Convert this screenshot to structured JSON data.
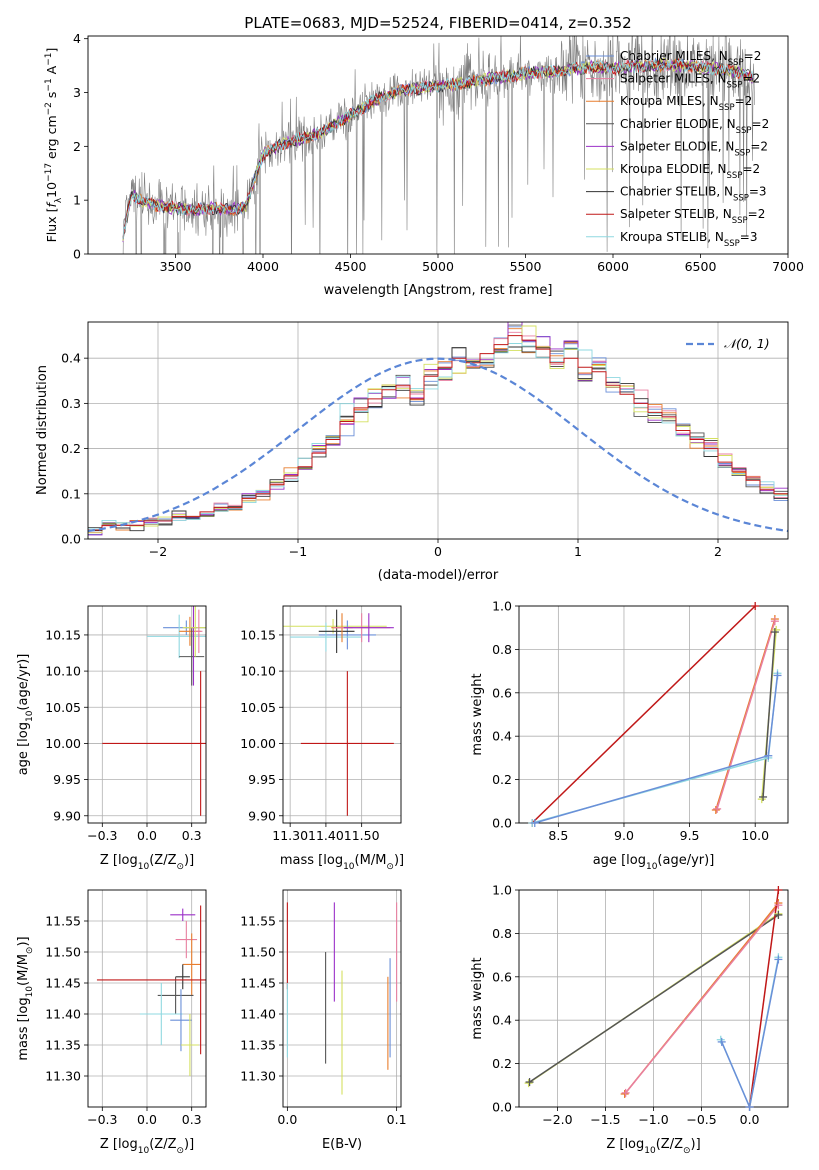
{
  "figure_title": "PLATE=0683, MJD=52524, FIBERID=0414, z=0.352",
  "colors": {
    "chabrier_miles": "#6a8fd8",
    "salpeter_miles": "#e87fa0",
    "kroupa_miles": "#e87e2e",
    "chabrier_elodie": "#555555",
    "salpeter_elodie": "#9b30c8",
    "kroupa_elodie": "#d4e060",
    "chabrier_stelib": "#333333",
    "salpeter_stelib": "#c01818",
    "kroupa_stelib": "#8fd8e0",
    "gauss": "#5b86d6",
    "data": "#808080",
    "grid": "#b0b0b0"
  },
  "chart_data": [
    {
      "id": "spectrum",
      "type": "line",
      "xlabel": "wavelength [Angstrom, rest frame]",
      "ylabel": "Flux [f_λ 10^-17 erg cm^-2 s^-1 A^-1]",
      "xlim": [
        3000,
        7000
      ],
      "ylim": [
        0,
        4.05
      ],
      "xticks": [
        3500,
        4000,
        4500,
        5000,
        5500,
        6000,
        6500,
        7000
      ],
      "yticks": [
        0,
        1,
        2,
        3,
        4
      ],
      "grid": false,
      "legend_position": "top-right",
      "legend": [
        {
          "main": "Chabrier MILES, N",
          "sub": "SSP",
          "tail": "=2",
          "color_key": "chabrier_miles"
        },
        {
          "main": "Salpeter MILES, N",
          "sub": "SSP",
          "tail": "=2",
          "color_key": "salpeter_miles"
        },
        {
          "main": "Kroupa MILES, N",
          "sub": "SSP",
          "tail": "=2",
          "color_key": "kroupa_miles"
        },
        {
          "main": "Chabrier ELODIE, N",
          "sub": "SSP",
          "tail": "=2",
          "color_key": "chabrier_elodie"
        },
        {
          "main": "Salpeter ELODIE, N",
          "sub": "SSP",
          "tail": "=2",
          "color_key": "salpeter_elodie"
        },
        {
          "main": "Kroupa ELODIE, N",
          "sub": "SSP",
          "tail": "=2",
          "color_key": "kroupa_elodie"
        },
        {
          "main": "Chabrier STELIB, N",
          "sub": "SSP",
          "tail": "=3",
          "color_key": "chabrier_stelib"
        },
        {
          "main": "Salpeter STELIB, N",
          "sub": "SSP",
          "tail": "=2",
          "color_key": "salpeter_stelib"
        },
        {
          "main": "Kroupa STELIB, N",
          "sub": "SSP",
          "tail": "=3",
          "color_key": "kroupa_stelib"
        }
      ],
      "continuum": {
        "x": [
          3200,
          3250,
          3300,
          3400,
          3500,
          3600,
          3700,
          3800,
          3900,
          4000,
          4100,
          4200,
          4300,
          4400,
          4500,
          4600,
          4700,
          4800,
          4900,
          5000,
          5100,
          5200,
          5300,
          5400,
          5500,
          5600,
          5700,
          5800,
          5900,
          6000,
          6100,
          6200,
          6300,
          6400,
          6500,
          6600,
          6700,
          6800
        ],
        "y": [
          0.35,
          1.1,
          1.0,
          0.9,
          0.85,
          0.82,
          0.85,
          0.82,
          0.88,
          1.85,
          2.02,
          2.13,
          2.22,
          2.38,
          2.58,
          2.78,
          2.95,
          3.05,
          3.08,
          3.12,
          3.15,
          3.2,
          3.26,
          3.31,
          3.36,
          3.38,
          3.4,
          3.45,
          3.48,
          3.45,
          3.48,
          3.5,
          3.52,
          3.5,
          3.47,
          3.44,
          3.38,
          3.28
        ]
      }
    },
    {
      "id": "residuals",
      "type": "line",
      "xlabel": "(data-model)/error",
      "ylabel": "Normed distribution",
      "xlim": [
        -2.5,
        2.5
      ],
      "ylim": [
        0,
        0.48
      ],
      "xticks": [
        -2,
        -1,
        0,
        1,
        2
      ],
      "yticks": [
        0.0,
        0.1,
        0.2,
        0.3,
        0.4
      ],
      "grid": true,
      "legend_position": "top-right",
      "legend_label": "𝒩(0, 1)",
      "bin_width": 0.1,
      "stelib_salpeter_hist": [
        0.02,
        0.03,
        0.03,
        0.03,
        0.04,
        0.04,
        0.05,
        0.05,
        0.06,
        0.07,
        0.07,
        0.09,
        0.1,
        0.12,
        0.14,
        0.16,
        0.19,
        0.22,
        0.26,
        0.29,
        0.31,
        0.33,
        0.34,
        0.31,
        0.36,
        0.38,
        0.4,
        0.39,
        0.41,
        0.43,
        0.45,
        0.44,
        0.42,
        0.39,
        0.4,
        0.38,
        0.37,
        0.34,
        0.32,
        0.3,
        0.28,
        0.27,
        0.24,
        0.22,
        0.2,
        0.17,
        0.15,
        0.13,
        0.11,
        0.1
      ]
    },
    {
      "id": "age-vs-Z",
      "type": "scatter",
      "xlabel": "Z [log10(Z/Z⊙)]",
      "ylabel": "age [log10(age/yr)]",
      "xlim": [
        -0.33,
        0.33
      ],
      "ylim": [
        9.89,
        10.19
      ],
      "xticks": [
        -0.25,
        0.0,
        0.25
      ],
      "yticks": [
        9.9,
        9.95,
        10.0,
        10.05,
        10.1,
        10.15
      ],
      "grid": true,
      "points": [
        {
          "key": "chabrier_miles",
          "x": 0.22,
          "y": 10.16,
          "xerr": 0.13,
          "yerr": 0.01
        },
        {
          "key": "kroupa_stelib",
          "x": 0.18,
          "y": 10.148,
          "xerr": 0.18,
          "yerr": 0.03
        },
        {
          "key": "kroupa_miles",
          "x": 0.24,
          "y": 10.155,
          "xerr": 0.06,
          "yerr": 0.02
        },
        {
          "key": "chabrier_elodie",
          "x": 0.25,
          "y": 10.12,
          "xerr": 0.07,
          "yerr": 0.04
        },
        {
          "key": "salpeter_elodie",
          "x": 0.26,
          "y": 10.16,
          "xerr": 0.02,
          "yerr": 0.08
        },
        {
          "key": "kroupa_elodie",
          "x": 0.27,
          "y": 10.16,
          "xerr": 0.07,
          "yerr": 0.04
        },
        {
          "key": "salpeter_miles",
          "x": 0.29,
          "y": 10.155,
          "xerr": 0.02,
          "yerr": 0.03
        },
        {
          "key": "salpeter_stelib",
          "x": 0.3,
          "y": 10.0,
          "xerr": 0.55,
          "yerr": 0.1
        }
      ]
    },
    {
      "id": "age-vs-mass",
      "type": "scatter",
      "xlabel": "mass [log10(M/M⊙)]",
      "ylabel": "",
      "xlim": [
        11.28,
        11.61
      ],
      "ylim": [
        9.89,
        10.19
      ],
      "xticks": [
        11.3,
        11.4,
        11.5
      ],
      "yticks": [
        9.9,
        9.95,
        10.0,
        10.05,
        10.1,
        10.15
      ],
      "grid": true,
      "points": [
        {
          "key": "kroupa_elodie",
          "x": 11.42,
          "y": 10.162,
          "xerr": 0.15,
          "yerr": 0.01
        },
        {
          "key": "chabrier_miles",
          "x": 11.46,
          "y": 10.15,
          "xerr": 0.08,
          "yerr": 0.02
        },
        {
          "key": "kroupa_stelib",
          "x": 11.4,
          "y": 10.147,
          "xerr": 0.1,
          "yerr": 0.02
        },
        {
          "key": "chabrier_stelib",
          "x": 11.43,
          "y": 10.155,
          "xerr": 0.05,
          "yerr": 0.03
        },
        {
          "key": "kroupa_miles",
          "x": 11.445,
          "y": 10.16,
          "xerr": 0.03,
          "yerr": 0.02
        },
        {
          "key": "salpeter_miles",
          "x": 11.5,
          "y": 10.16,
          "xerr": 0.08,
          "yerr": 0.02
        },
        {
          "key": "salpeter_elodie",
          "x": 11.52,
          "y": 10.16,
          "xerr": 0.07,
          "yerr": 0.02
        },
        {
          "key": "salpeter_stelib",
          "x": 11.46,
          "y": 10.0,
          "xerr": 0.13,
          "yerr": 0.1
        }
      ]
    },
    {
      "id": "weight-vs-age",
      "type": "line",
      "xlabel": "age [log10(age/yr)]",
      "ylabel": "mass weight",
      "xlim": [
        8.2,
        10.25
      ],
      "ylim": [
        0,
        1.0
      ],
      "xticks": [
        8.5,
        9.0,
        9.5,
        10.0
      ],
      "yticks": [
        0.0,
        0.2,
        0.4,
        0.6,
        0.8,
        1.0
      ],
      "grid": true,
      "series": [
        {
          "key": "salpeter_stelib",
          "x": [
            8.3,
            10.0
          ],
          "y": [
            0.0,
            1.0
          ]
        },
        {
          "key": "kroupa_miles",
          "x": [
            9.7,
            10.15
          ],
          "y": [
            0.06,
            0.94
          ]
        },
        {
          "key": "salpeter_miles",
          "x": [
            9.71,
            10.15
          ],
          "y": [
            0.065,
            0.93
          ]
        },
        {
          "key": "kroupa_elodie",
          "x": [
            10.05,
            10.16
          ],
          "y": [
            0.11,
            0.89
          ]
        },
        {
          "key": "chabrier_elodie",
          "x": [
            10.06,
            10.15
          ],
          "y": [
            0.12,
            0.88
          ]
        },
        {
          "key": "kroupa_stelib",
          "x": [
            8.3,
            10.1,
            10.17
          ],
          "y": [
            0.0,
            0.3,
            0.69
          ]
        },
        {
          "key": "chabrier_miles",
          "x": [
            8.32,
            10.1,
            10.17
          ],
          "y": [
            0.0,
            0.31,
            0.68
          ]
        }
      ]
    },
    {
      "id": "mass-vs-Z",
      "type": "scatter",
      "xlabel": "Z [log10(Z/Z⊙)]",
      "ylabel": "mass [log10(M/M⊙)]",
      "xlim": [
        -0.33,
        0.33
      ],
      "ylim": [
        11.25,
        11.6
      ],
      "xticks": [
        -0.25,
        0.0,
        0.25
      ],
      "yticks": [
        11.3,
        11.35,
        11.4,
        11.45,
        11.5,
        11.55
      ],
      "grid": true,
      "points": [
        {
          "key": "salpeter_elodie",
          "x": 0.2,
          "y": 11.56,
          "xerr": 0.07,
          "yerr": 0.01
        },
        {
          "key": "salpeter_miles",
          "x": 0.22,
          "y": 11.52,
          "xerr": 0.06,
          "yerr": 0.03
        },
        {
          "key": "kroupa_miles",
          "x": 0.25,
          "y": 11.48,
          "xerr": 0.05,
          "yerr": 0.05
        },
        {
          "key": "chabrier_stelib",
          "x": 0.2,
          "y": 11.46,
          "xerr": 0.04,
          "yerr": 0.02
        },
        {
          "key": "chabrier_elodie",
          "x": 0.16,
          "y": 11.43,
          "xerr": 0.1,
          "yerr": 0.03
        },
        {
          "key": "kroupa_stelib",
          "x": 0.08,
          "y": 11.4,
          "xerr": 0.12,
          "yerr": 0.05
        },
        {
          "key": "chabrier_miles",
          "x": 0.19,
          "y": 11.39,
          "xerr": 0.06,
          "yerr": 0.05
        },
        {
          "key": "kroupa_elodie",
          "x": 0.24,
          "y": 11.35,
          "xerr": 0.05,
          "yerr": 0.05
        },
        {
          "key": "salpeter_stelib",
          "x": 0.3,
          "y": 11.455,
          "xerr": 0.58,
          "yerr": 0.12
        }
      ]
    },
    {
      "id": "mass-vs-EBV",
      "type": "scatter",
      "xlabel": "E(B-V)",
      "ylabel": "",
      "xlim": [
        -0.004,
        0.104
      ],
      "ylim": [
        11.25,
        11.6
      ],
      "xticks": [
        0.0,
        0.1
      ],
      "yticks": [
        11.3,
        11.35,
        11.4,
        11.45,
        11.5,
        11.55
      ],
      "grid": true,
      "points": [
        {
          "key": "salpeter_stelib",
          "x": 0.0,
          "y": 11.51,
          "xerr": 0,
          "yerr": 0.07
        },
        {
          "key": "kroupa_stelib",
          "x": 0.0,
          "y": 11.39,
          "xerr": 0,
          "yerr": 0.06
        },
        {
          "key": "chabrier_elodie",
          "x": 0.035,
          "y": 11.41,
          "xerr": 0,
          "yerr": 0.09
        },
        {
          "key": "salpeter_elodie",
          "x": 0.043,
          "y": 11.5,
          "xerr": 0,
          "yerr": 0.08
        },
        {
          "key": "kroupa_elodie",
          "x": 0.05,
          "y": 11.37,
          "xerr": 0,
          "yerr": 0.1
        },
        {
          "key": "kroupa_miles",
          "x": 0.092,
          "y": 11.385,
          "xerr": 0,
          "yerr": 0.075
        },
        {
          "key": "chabrier_miles",
          "x": 0.094,
          "y": 11.41,
          "xerr": 0,
          "yerr": 0.08
        },
        {
          "key": "salpeter_miles",
          "x": 0.1,
          "y": 11.5,
          "xerr": 0,
          "yerr": 0.08
        }
      ]
    },
    {
      "id": "weight-vs-Z",
      "type": "line",
      "xlabel": "Z [log10(Z/Z⊙)]",
      "ylabel": "mass weight",
      "xlim": [
        -2.4,
        0.4
      ],
      "ylim": [
        0,
        1.0
      ],
      "xticks": [
        -2.0,
        -1.5,
        -1.0,
        -0.5,
        0.0
      ],
      "yticks": [
        0.0,
        0.2,
        0.4,
        0.6,
        0.8,
        1.0
      ],
      "grid": true,
      "series": [
        {
          "key": "kroupa_elodie",
          "x": [
            -2.3,
            0.3
          ],
          "y": [
            0.11,
            0.89
          ]
        },
        {
          "key": "chabrier_elodie",
          "x": [
            -2.29,
            0.3
          ],
          "y": [
            0.115,
            0.885
          ]
        },
        {
          "key": "kroupa_miles",
          "x": [
            -1.3,
            0.3
          ],
          "y": [
            0.06,
            0.94
          ]
        },
        {
          "key": "salpeter_miles",
          "x": [
            -1.29,
            0.3
          ],
          "y": [
            0.065,
            0.93
          ]
        },
        {
          "key": "salpeter_stelib",
          "x": [
            0.0,
            0.3
          ],
          "y": [
            0.0,
            1.0
          ]
        },
        {
          "key": "kroupa_stelib",
          "x": [
            -0.3,
            0.0,
            0.3
          ],
          "y": [
            0.31,
            0.0,
            0.69
          ]
        },
        {
          "key": "chabrier_miles",
          "x": [
            -0.29,
            0.0,
            0.3
          ],
          "y": [
            0.3,
            0.0,
            0.68
          ]
        }
      ]
    }
  ]
}
